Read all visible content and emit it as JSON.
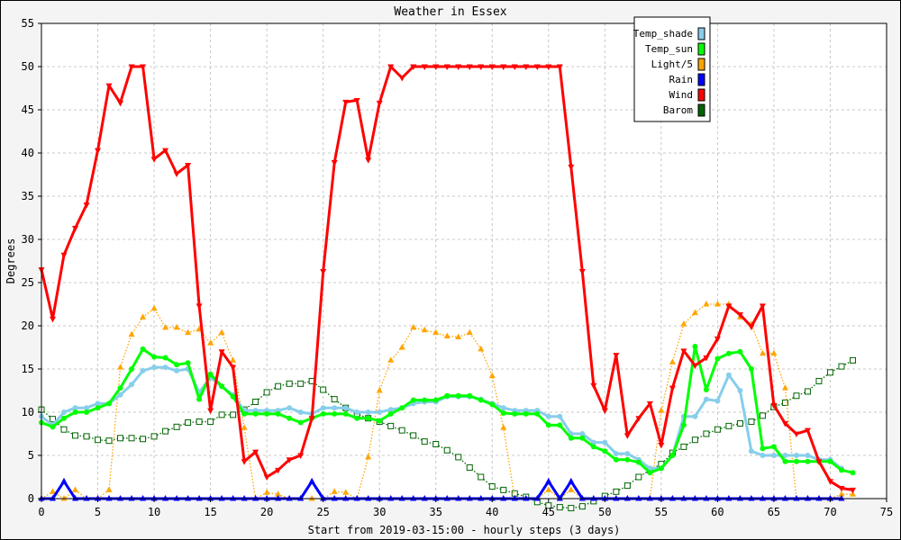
{
  "chart_data": {
    "type": "line",
    "title": "Weather in Essex",
    "xlabel": "Start from 2019-03-15:00 - hourly steps (3 days)",
    "ylabel": "Degrees",
    "xlim": [
      0,
      75
    ],
    "ylim": [
      0,
      55
    ],
    "x_ticks": [
      "0",
      "5",
      "10",
      "15",
      "20",
      "25",
      "30",
      "35",
      "40",
      "45",
      "50",
      "55",
      "60",
      "65",
      "70",
      "75"
    ],
    "y_ticks": [
      "0",
      "5",
      "10",
      "15",
      "20",
      "25",
      "30",
      "35",
      "40",
      "45",
      "50",
      "55"
    ],
    "grid": true,
    "legend_position": "top-right",
    "series": [
      {
        "name": "Temp_shade",
        "color": "#87ceeb",
        "marker": "circle",
        "style": "solid",
        "values": [
          9.5,
          8.5,
          10,
          10.5,
          10.5,
          11,
          11,
          12,
          13.2,
          14.8,
          15.2,
          15.2,
          14.8,
          15,
          12.3,
          14,
          13,
          12,
          10.2,
          10.2,
          10.2,
          10.2,
          10.5,
          10,
          9.8,
          10.5,
          10.5,
          10.5,
          10,
          10,
          10,
          10.3,
          10.5,
          11,
          11.2,
          11.2,
          11.8,
          11.8,
          11.8,
          11.5,
          11,
          10.5,
          10.2,
          10.2,
          10.2,
          9.5,
          9.5,
          7.5,
          7.5,
          6.5,
          6.5,
          5.2,
          5.2,
          4.5,
          3.5,
          3.5,
          5,
          9.5,
          9.5,
          11.5,
          11.3,
          14.3,
          12.5,
          5.5,
          5,
          5,
          5,
          5,
          5,
          4.5,
          4.5,
          3.5
        ]
      },
      {
        "name": "Temp_sun",
        "color": "#00ff00",
        "marker": "circle",
        "style": "solid",
        "values": [
          8.8,
          8.3,
          9.3,
          10,
          10,
          10.5,
          11,
          12.8,
          15,
          17.3,
          16.4,
          16.3,
          15.5,
          15.7,
          11.5,
          14.4,
          13,
          11.8,
          9.8,
          9.8,
          9.8,
          9.8,
          9.3,
          8.8,
          9.3,
          9.8,
          9.8,
          9.8,
          9.3,
          9.3,
          9,
          9.8,
          10.5,
          11.4,
          11.4,
          11.4,
          11.9,
          11.9,
          11.9,
          11.4,
          10.9,
          9.9,
          9.8,
          9.8,
          9.8,
          8.5,
          8.5,
          7,
          7,
          6,
          5.5,
          4.5,
          4.5,
          4.2,
          3,
          3.5,
          5,
          8.5,
          17.6,
          12.6,
          16.2,
          16.8,
          17,
          15,
          5.8,
          6,
          4.3,
          4.3,
          4.3,
          4.3,
          4.3,
          3.3,
          3
        ]
      },
      {
        "name": "Light/5",
        "color": "#ffa500",
        "marker": "triangle-up",
        "style": "dotted",
        "values": [
          0,
          0.8,
          0,
          1,
          0,
          0,
          1,
          15.2,
          19,
          21,
          22,
          19.8,
          19.8,
          19.2,
          19.6,
          18,
          19.2,
          16,
          8.2,
          0,
          0.7,
          0.5,
          0,
          0,
          0,
          0,
          0.8,
          0.7,
          0,
          4.8,
          12.5,
          16,
          17.5,
          19.8,
          19.5,
          19.2,
          18.8,
          18.7,
          19.2,
          17.3,
          14.2,
          8.2,
          0,
          0,
          0,
          1,
          0,
          1,
          0,
          0,
          0,
          0,
          0,
          0,
          0,
          10.2,
          15.8,
          20.2,
          21.5,
          22.5,
          22.5,
          22.5,
          21,
          20.2,
          16.8,
          16.8,
          12.8,
          0,
          0,
          0,
          0,
          0.5,
          0.5
        ]
      },
      {
        "name": "Rain",
        "color": "#0000ff",
        "marker": "triangle-up",
        "style": "solid",
        "values": [
          0,
          0,
          2,
          0,
          0,
          0,
          0,
          0,
          0,
          0,
          0,
          0,
          0,
          0,
          0,
          0,
          0,
          0,
          0,
          0,
          0,
          0,
          0,
          0,
          2,
          0,
          0,
          0,
          0,
          0,
          0,
          0,
          0,
          0,
          0,
          0,
          0,
          0,
          0,
          0,
          0,
          0,
          0,
          0,
          0,
          2,
          0,
          2,
          0,
          0,
          0,
          0,
          0,
          0,
          0,
          0,
          0,
          0,
          0,
          0,
          0,
          0,
          0,
          0,
          0,
          0,
          0,
          0,
          0,
          0,
          0,
          0
        ]
      },
      {
        "name": "Wind",
        "color": "#ff0000",
        "marker": "triangle-down",
        "style": "solid",
        "values": [
          26.5,
          20.8,
          28.2,
          31.3,
          34,
          40.3,
          47.8,
          45.8,
          50,
          50,
          39.3,
          40.3,
          37.6,
          38.6,
          22.3,
          10.2,
          17,
          15.2,
          4.3,
          5.4,
          2.5,
          3.3,
          4.5,
          5,
          9.3,
          26.3,
          38.9,
          45.9,
          46.1,
          39.2,
          45.8,
          50,
          48.7,
          50,
          50,
          50,
          50,
          50,
          50,
          50,
          50,
          50,
          50,
          50,
          50,
          50,
          50,
          38.4,
          26.3,
          13.1,
          10.2,
          16.6,
          7.3,
          9.3,
          11,
          6.2,
          12.8,
          17.1,
          15.4,
          16.3,
          18.5,
          22.3,
          21.3,
          19.9,
          22.3,
          10.8,
          8.7,
          7.5,
          7.9,
          4.3,
          2,
          1.2,
          1
        ]
      },
      {
        "name": "Barom",
        "color": "#006400",
        "marker": "square",
        "style": "dotted",
        "values": [
          10.3,
          9.2,
          8,
          7.3,
          7.2,
          6.8,
          6.7,
          7,
          7,
          6.9,
          7.2,
          7.8,
          8.3,
          8.8,
          8.9,
          8.9,
          9.7,
          9.7,
          10.3,
          11.2,
          12.3,
          13,
          13.3,
          13.3,
          13.6,
          12.6,
          11.5,
          10.5,
          9.8,
          9.3,
          8.9,
          8.4,
          7.9,
          7.3,
          6.6,
          6.3,
          5.6,
          4.8,
          3.6,
          2.5,
          1.4,
          1,
          0.6,
          0.2,
          -0.4,
          -0.8,
          -1,
          -1.1,
          -0.9,
          -0.3,
          0.3,
          0.8,
          1.5,
          2.5,
          3.3,
          4,
          5.3,
          6,
          6.8,
          7.5,
          8,
          8.4,
          8.7,
          8.9,
          9.6,
          10.6,
          11.1,
          11.9,
          12.4,
          13.6,
          14.6,
          15.3,
          16
        ]
      }
    ]
  }
}
